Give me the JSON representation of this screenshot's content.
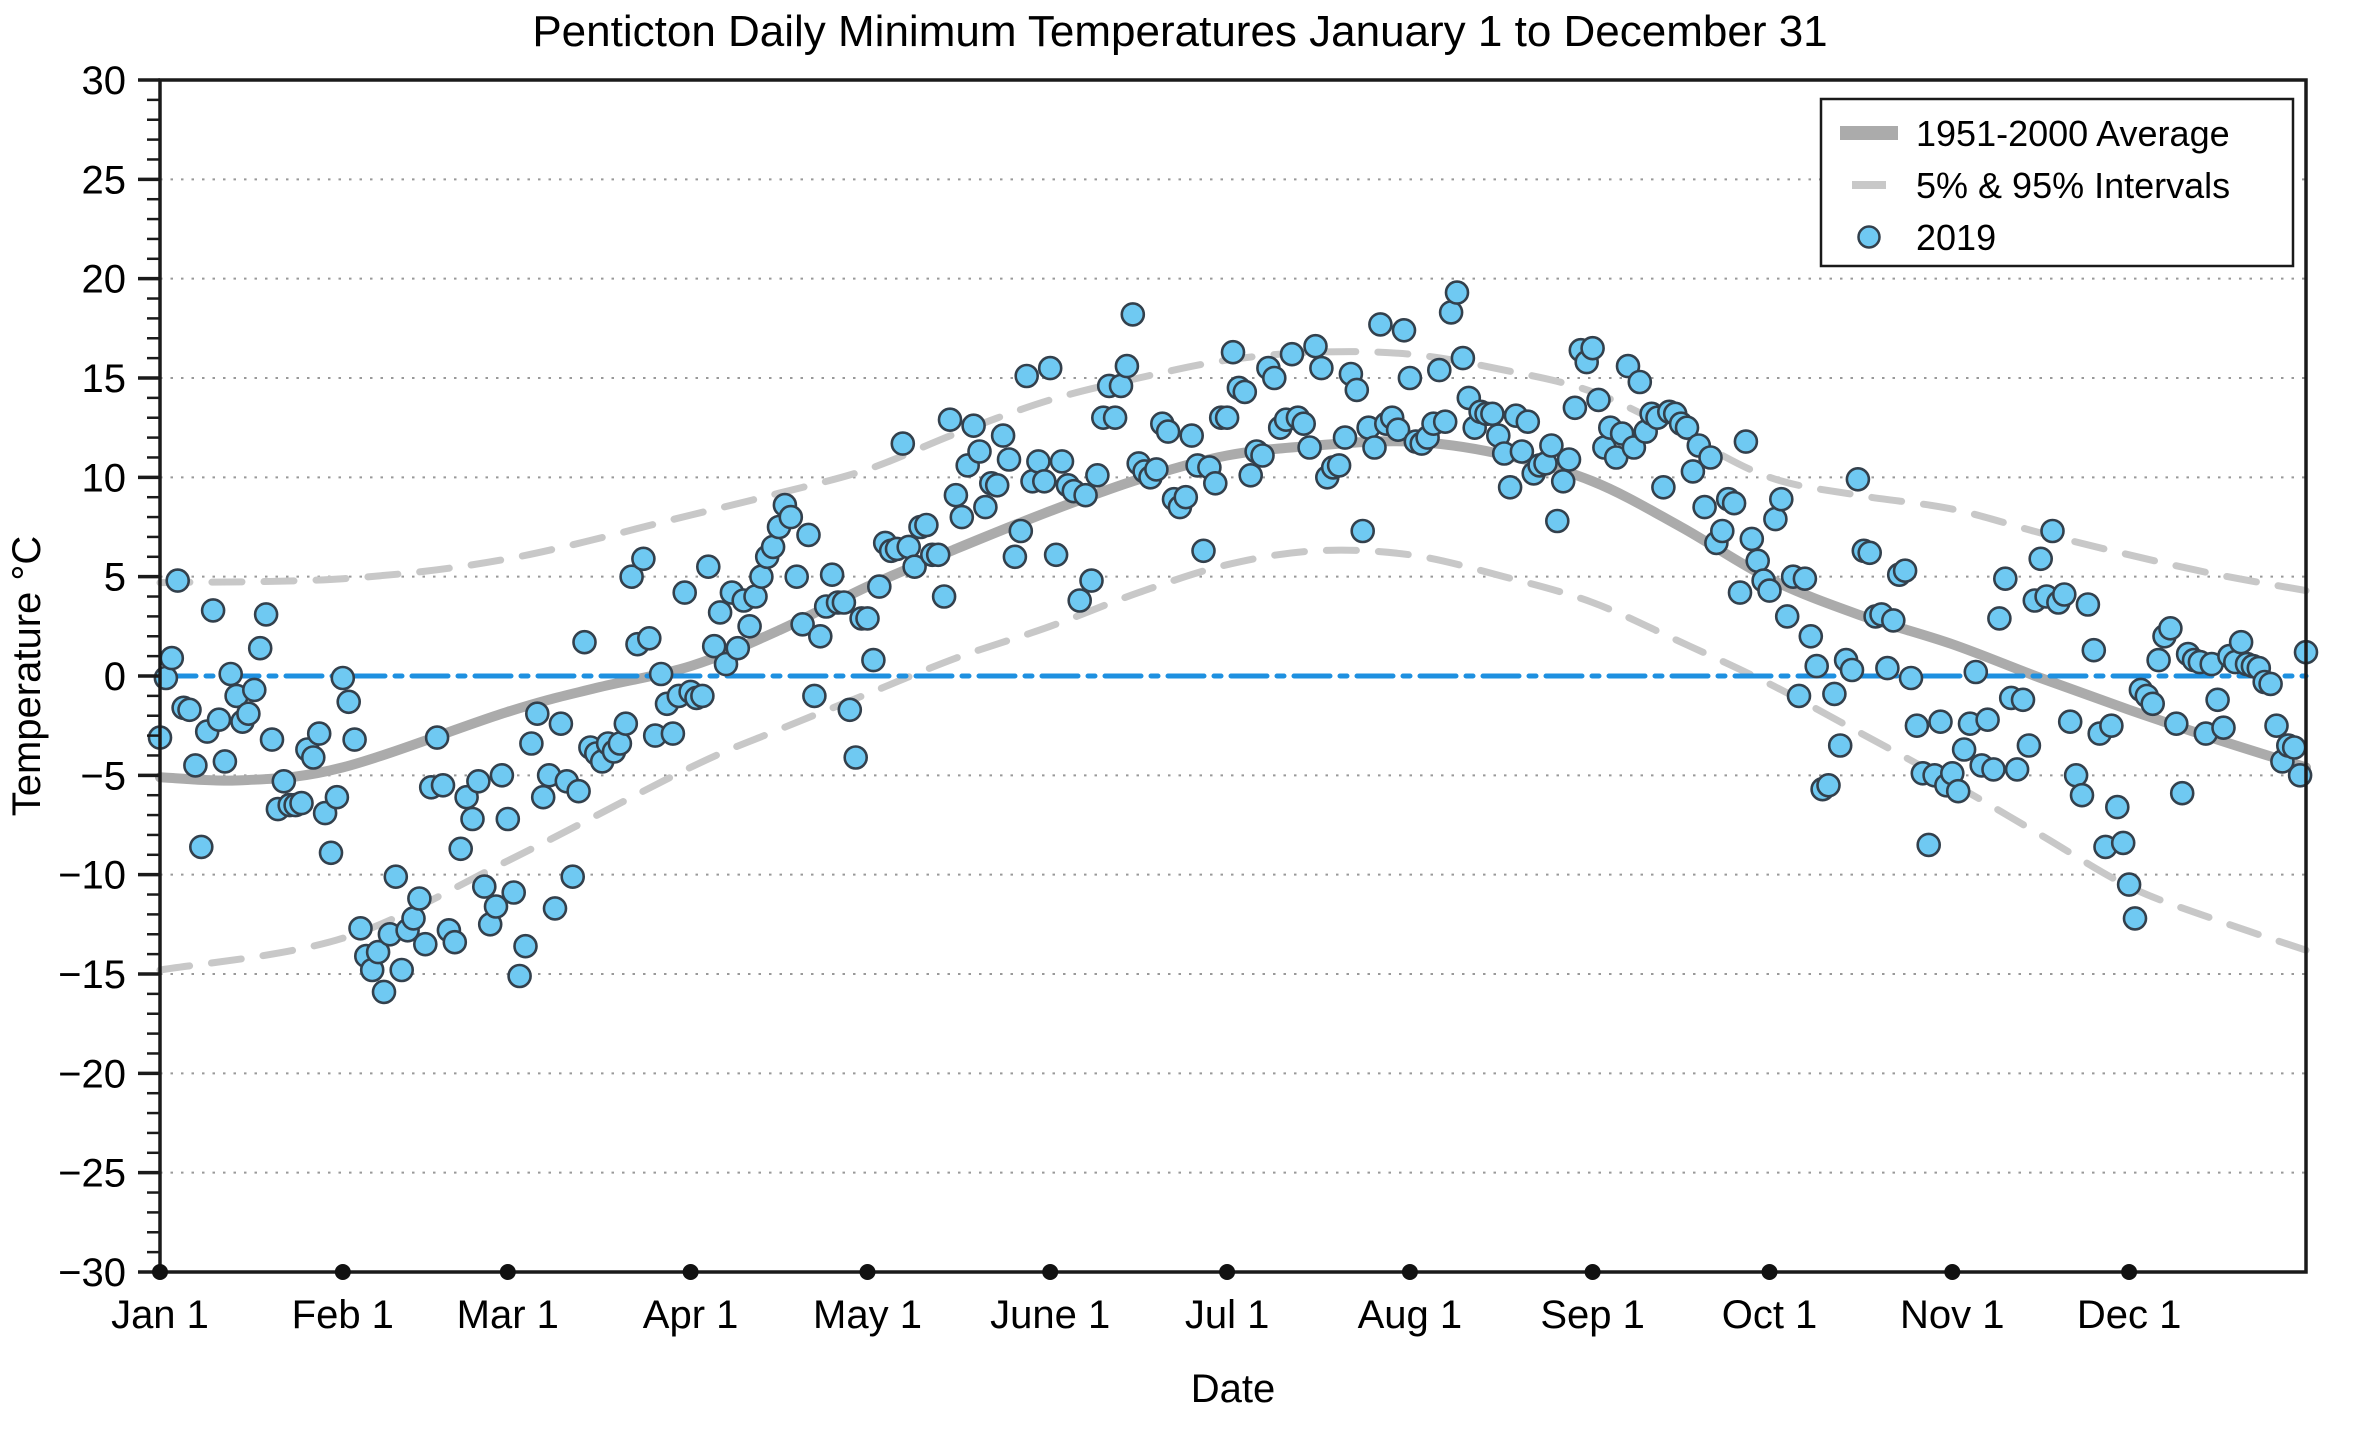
{
  "chart_data": {
    "type": "scatter",
    "title": "Penticton Daily Minimum Temperatures January 1 to December 31",
    "xlabel": "Date",
    "ylabel": "Temperature °C",
    "ylim": [
      -30,
      30
    ],
    "y_major_tick_step": 5,
    "y_minor_tick_step": 1,
    "grid": "dotted horizontal lines every 5 degrees, none at 0 and ±30",
    "zero_line": {
      "value": 0,
      "style": "dash-dot",
      "color": "#1E90E0"
    },
    "x_months": [
      {
        "label": "Jan 1",
        "days": 31
      },
      {
        "label": "Feb 1",
        "days": 28
      },
      {
        "label": "Mar 1",
        "days": 31
      },
      {
        "label": "Apr 1",
        "days": 30
      },
      {
        "label": "May 1",
        "days": 31
      },
      {
        "label": "June 1",
        "days": 30
      },
      {
        "label": "Jul 1",
        "days": 31
      },
      {
        "label": "Aug 1",
        "days": 31
      },
      {
        "label": "Sep 1",
        "days": 30
      },
      {
        "label": "Oct 1",
        "days": 31
      },
      {
        "label": "Nov 1",
        "days": 30
      },
      {
        "label": "Dec 1",
        "days": 31
      }
    ],
    "legend": {
      "position": "upper right",
      "entries": [
        {
          "label": "1951-2000 Average",
          "marker": "thick-solid-line",
          "color": "#ABABAB"
        },
        {
          "label": "5% & 95% Intervals",
          "marker": "dashed-line",
          "color": "#C8C8C8"
        },
        {
          "label": "2019",
          "marker": "dot",
          "color": "#6FC9F2"
        }
      ]
    },
    "series": [
      {
        "name": "1951-2000 Average",
        "type": "line",
        "style": "solid",
        "color": "#ABABAB",
        "width": 10,
        "anchors": [
          [
            1,
            -5.1
          ],
          [
            15,
            -5.25
          ],
          [
            32,
            -4.6
          ],
          [
            60,
            -1.8
          ],
          [
            75,
            -0.6
          ],
          [
            91,
            0.5
          ],
          [
            106,
            2.3
          ],
          [
            121,
            4.5
          ],
          [
            136,
            6.4
          ],
          [
            152,
            8.3
          ],
          [
            167,
            9.9
          ],
          [
            182,
            11.1
          ],
          [
            197,
            11.6
          ],
          [
            213,
            11.8
          ],
          [
            228,
            11.2
          ],
          [
            244,
            9.8
          ],
          [
            259,
            7.5
          ],
          [
            274,
            4.9
          ],
          [
            289,
            3.1
          ],
          [
            305,
            1.6
          ],
          [
            320,
            -0.1
          ],
          [
            335,
            -1.7
          ],
          [
            350,
            -3.2
          ],
          [
            365,
            -4.6
          ]
        ]
      },
      {
        "name": "95% Interval",
        "type": "line",
        "style": "dashed",
        "color": "#C8C8C8",
        "width": 7,
        "anchors": [
          [
            1,
            4.7
          ],
          [
            32,
            4.9
          ],
          [
            60,
            5.9
          ],
          [
            91,
            8.1
          ],
          [
            106,
            9.2
          ],
          [
            121,
            10.4
          ],
          [
            136,
            12.2
          ],
          [
            152,
            13.9
          ],
          [
            167,
            15.0
          ],
          [
            182,
            15.9
          ],
          [
            197,
            16.3
          ],
          [
            213,
            16.2
          ],
          [
            229,
            15.4
          ],
          [
            244,
            14.3
          ],
          [
            259,
            12.2
          ],
          [
            274,
            10.0
          ],
          [
            289,
            9.1
          ],
          [
            305,
            8.4
          ],
          [
            320,
            7.2
          ],
          [
            335,
            6.1
          ],
          [
            350,
            5.1
          ],
          [
            365,
            4.3
          ]
        ]
      },
      {
        "name": "5% Interval",
        "type": "line",
        "style": "dashed",
        "color": "#C8C8C8",
        "width": 7,
        "anchors": [
          [
            1,
            -14.8
          ],
          [
            32,
            -13.2
          ],
          [
            60,
            -9.3
          ],
          [
            91,
            -4.6
          ],
          [
            106,
            -2.7
          ],
          [
            121,
            -0.9
          ],
          [
            136,
            0.9
          ],
          [
            152,
            2.5
          ],
          [
            167,
            4.2
          ],
          [
            182,
            5.6
          ],
          [
            197,
            6.3
          ],
          [
            213,
            6.1
          ],
          [
            229,
            5.0
          ],
          [
            244,
            3.7
          ],
          [
            259,
            1.7
          ],
          [
            274,
            -0.4
          ],
          [
            289,
            -2.8
          ],
          [
            305,
            -5.4
          ],
          [
            320,
            -8.0
          ],
          [
            335,
            -10.6
          ],
          [
            350,
            -12.3
          ],
          [
            365,
            -13.8
          ]
        ]
      },
      {
        "name": "2019",
        "type": "scatter",
        "fill": "#6FC9F2",
        "edge": "#33404C",
        "monthly_values": [
          [
            -3.1,
            -0.1,
            0.9,
            4.8,
            -1.6,
            -1.7,
            -4.5,
            -8.6,
            -2.8,
            3.3,
            -2.2,
            -4.3,
            0.1,
            -1.0,
            -2.3,
            -1.9,
            -0.7,
            1.4,
            3.1,
            -3.2,
            -6.7,
            -5.3,
            -6.5,
            -6.5,
            -6.4,
            -3.7,
            -4.1,
            -2.9,
            -6.9,
            -8.9,
            -6.1
          ],
          [
            -0.1,
            -1.3,
            -3.2,
            -12.7,
            -14.1,
            -14.8,
            -13.9,
            -15.9,
            -13.0,
            -10.1,
            -14.8,
            -12.8,
            -12.2,
            -11.2,
            -13.5,
            -5.6,
            -3.1,
            -5.5,
            -12.8,
            -13.4,
            -8.7,
            -6.1,
            -7.2,
            -5.3,
            -10.6,
            -12.5,
            -11.6,
            -5.0
          ],
          [
            -7.2,
            -10.9,
            -15.1,
            -13.6,
            -3.4,
            -1.9,
            -6.1,
            -5.0,
            -11.7,
            -2.4,
            -5.3,
            -10.1,
            -5.8,
            1.7,
            -3.6,
            -3.9,
            -4.3,
            -3.4,
            -3.8,
            -3.4,
            -2.4,
            5.0,
            1.6,
            5.9,
            1.9,
            -3.0,
            0.1,
            -1.4,
            -2.9,
            -1.0,
            4.2
          ],
          [
            -0.8,
            -1.1,
            -1.0,
            5.5,
            1.5,
            3.2,
            0.6,
            4.2,
            1.4,
            3.8,
            2.5,
            4.0,
            5.0,
            6.0,
            6.5,
            7.5,
            8.6,
            8.0,
            5.0,
            2.6,
            7.1,
            -1.0,
            2.0,
            3.5,
            5.1,
            3.7,
            3.7,
            -1.7,
            -4.1,
            2.9
          ],
          [
            2.9,
            0.8,
            4.5,
            6.7,
            6.3,
            6.4,
            11.7,
            6.5,
            5.5,
            7.5,
            7.6,
            6.1,
            6.1,
            4.0,
            12.9,
            9.1,
            8.0,
            10.6,
            12.6,
            11.3,
            8.5,
            9.7,
            9.6,
            12.1,
            10.9,
            6.0,
            7.3,
            15.1,
            9.8,
            10.8,
            9.8
          ],
          [
            15.5,
            6.1,
            10.8,
            9.6,
            9.3,
            3.8,
            9.1,
            4.8,
            10.1,
            13.0,
            14.6,
            13.0,
            14.6,
            15.6,
            18.2,
            10.7,
            10.3,
            10.0,
            10.4,
            12.7,
            12.3,
            8.9,
            8.5,
            9.0,
            12.1,
            10.6,
            6.3,
            10.5,
            9.7,
            13.0
          ],
          [
            13.0,
            16.3,
            14.5,
            14.3,
            10.1,
            11.3,
            11.1,
            15.5,
            15.0,
            12.5,
            12.9,
            16.2,
            13.0,
            12.7,
            11.5,
            16.6,
            15.5,
            10.0,
            10.5,
            10.6,
            12.0,
            15.2,
            14.4,
            7.3,
            12.5,
            11.5,
            17.7,
            12.7,
            13.0,
            12.4,
            17.4
          ],
          [
            15.0,
            11.8,
            11.7,
            12.0,
            12.7,
            15.4,
            12.8,
            18.3,
            19.3,
            16.0,
            14.0,
            12.5,
            13.3,
            13.2,
            13.2,
            12.1,
            11.2,
            9.5,
            13.1,
            11.3,
            12.8,
            10.2,
            10.6,
            10.7,
            11.6,
            7.8,
            9.8,
            10.9,
            13.5,
            16.4,
            15.8
          ],
          [
            16.5,
            13.9,
            11.5,
            12.5,
            11.0,
            12.2,
            15.6,
            11.5,
            14.8,
            12.3,
            13.2,
            13.0,
            9.5,
            13.3,
            13.2,
            12.7,
            12.5,
            10.3,
            11.6,
            8.5,
            11.0,
            6.7,
            7.3,
            8.9,
            8.7,
            4.2,
            11.8,
            6.9,
            5.8,
            4.8
          ],
          [
            4.3,
            7.9,
            8.9,
            3.0,
            5.0,
            -1.0,
            4.9,
            2.0,
            0.5,
            -5.7,
            -5.5,
            -0.9,
            -3.5,
            0.8,
            0.3,
            9.9,
            6.3,
            6.2,
            3.0,
            3.1,
            0.4,
            2.8,
            5.1,
            5.3,
            -0.1,
            -2.5,
            -4.9,
            -8.5,
            -5.0,
            -2.3,
            -5.5
          ],
          [
            -4.9,
            -5.8,
            -3.7,
            -2.4,
            0.2,
            -4.5,
            -2.2,
            -4.7,
            2.9,
            4.9,
            -1.1,
            -4.7,
            -1.2,
            -3.5,
            3.8,
            5.9,
            4.0,
            7.3,
            3.7,
            4.1,
            -2.3,
            -5.0,
            -6.0,
            3.6,
            1.3,
            -2.9,
            -8.6,
            -2.5,
            -6.6,
            -8.4
          ],
          [
            -10.5,
            -12.2,
            -0.7,
            -1.0,
            -1.4,
            0.8,
            2.0,
            2.4,
            -2.4,
            -5.9,
            1.1,
            0.8,
            0.7,
            -2.9,
            0.6,
            -1.2,
            -2.6,
            1.0,
            0.7,
            1.7,
            0.6,
            0.5,
            0.4,
            -0.3,
            -0.4,
            -2.5,
            -4.3,
            -3.5,
            -3.6,
            -5.0,
            1.2
          ]
        ]
      }
    ],
    "style": {
      "grid_color": "#999999",
      "frame_color": "#1A1A1A",
      "month_marker_color": "#111111",
      "background": "#FFFFFF"
    }
  }
}
